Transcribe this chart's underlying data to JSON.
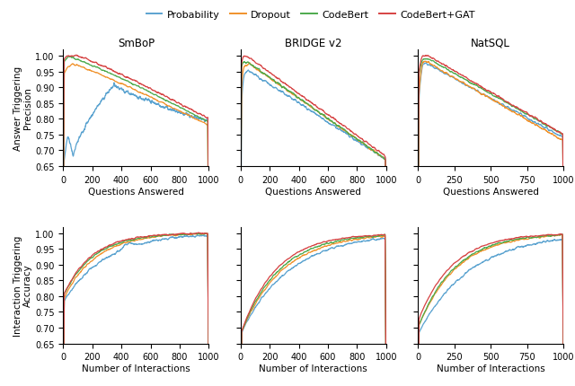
{
  "colors": {
    "Probability": "#5ba3d0",
    "Dropout": "#f0922b",
    "CodeBert": "#4daa4d",
    "CodeBert+GAT": "#d64242"
  },
  "legend_labels": [
    "Probability",
    "Dropout",
    "CodeBert",
    "CodeBert+GAT"
  ],
  "row_labels": [
    "Answer Triggering\nPrecision",
    "Interaction Triggering\nAccuracy"
  ],
  "col_titles": [
    "SmBoP",
    "BRIDGE v2",
    "NatSQL"
  ],
  "top_xlabels": "Questions Answered",
  "bot_xlabels": "Number of Interactions",
  "ylim": [
    0.65,
    1.02
  ],
  "yticks": [
    0.65,
    0.7,
    0.75,
    0.8,
    0.85,
    0.9,
    0.95,
    1.0
  ],
  "n_points": 1000,
  "figsize": [
    6.4,
    4.31
  ]
}
